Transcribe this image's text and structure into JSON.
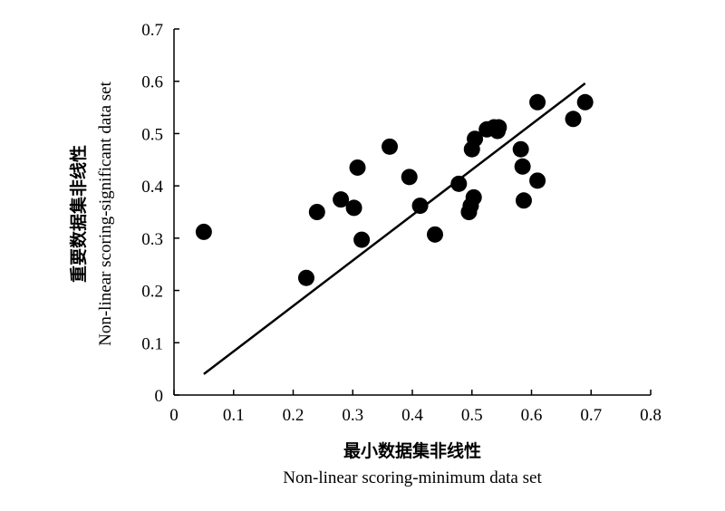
{
  "chart_data": {
    "type": "scatter",
    "xlabel": "最小数据集非线性",
    "xlabel_en": "Non-linear scoring-minimum data set",
    "ylabel": "重要数据集非线性",
    "ylabel_en": "Non-linear scoring-significant data set",
    "xlim": [
      0,
      0.8
    ],
    "ylim": [
      0,
      0.7
    ],
    "x_ticks": [
      "0",
      "0.1",
      "0.2",
      "0.3",
      "0.4",
      "0.5",
      "0.6",
      "0.7",
      "0.8"
    ],
    "y_ticks": [
      "0",
      "0.1",
      "0.2",
      "0.3",
      "0.4",
      "0.5",
      "0.6",
      "0.7"
    ],
    "grid": false,
    "legend": "none",
    "marker_color": "#000000",
    "points": [
      {
        "x": 0.05,
        "y": 0.312
      },
      {
        "x": 0.222,
        "y": 0.224
      },
      {
        "x": 0.24,
        "y": 0.35
      },
      {
        "x": 0.28,
        "y": 0.374
      },
      {
        "x": 0.302,
        "y": 0.358
      },
      {
        "x": 0.308,
        "y": 0.435
      },
      {
        "x": 0.315,
        "y": 0.297
      },
      {
        "x": 0.362,
        "y": 0.475
      },
      {
        "x": 0.395,
        "y": 0.417
      },
      {
        "x": 0.413,
        "y": 0.362
      },
      {
        "x": 0.438,
        "y": 0.307
      },
      {
        "x": 0.478,
        "y": 0.404
      },
      {
        "x": 0.495,
        "y": 0.35
      },
      {
        "x": 0.498,
        "y": 0.362
      },
      {
        "x": 0.5,
        "y": 0.47
      },
      {
        "x": 0.503,
        "y": 0.378
      },
      {
        "x": 0.505,
        "y": 0.49
      },
      {
        "x": 0.525,
        "y": 0.508
      },
      {
        "x": 0.537,
        "y": 0.512
      },
      {
        "x": 0.543,
        "y": 0.505
      },
      {
        "x": 0.545,
        "y": 0.512
      },
      {
        "x": 0.582,
        "y": 0.47
      },
      {
        "x": 0.585,
        "y": 0.437
      },
      {
        "x": 0.587,
        "y": 0.372
      },
      {
        "x": 0.61,
        "y": 0.41
      },
      {
        "x": 0.61,
        "y": 0.56
      },
      {
        "x": 0.67,
        "y": 0.528
      },
      {
        "x": 0.69,
        "y": 0.56
      }
    ],
    "trendline": {
      "x": [
        0.05,
        0.69
      ],
      "y": [
        0.04,
        0.596
      ]
    }
  }
}
